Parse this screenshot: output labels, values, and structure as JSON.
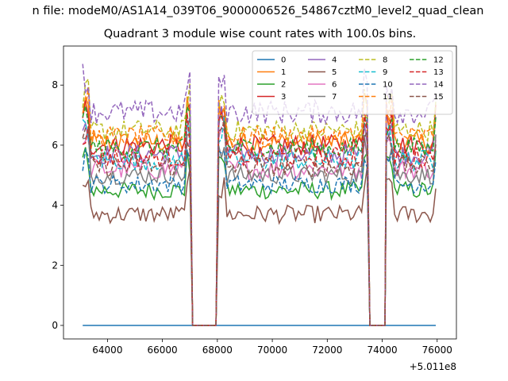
{
  "chart_data": {
    "type": "line",
    "suptitle": "n file: modeM0/AS1A14_039T06_9000006526_54867cztM0_level2_quad_clean",
    "title": "Quadrant 3 module wise count rates with 100.0s bins.",
    "x_offset_label": "+5.011e8",
    "xlim": [
      62400,
      76700
    ],
    "ylim": [
      -0.45,
      9.3
    ],
    "x_ticks": [
      64000,
      66000,
      68000,
      70000,
      72000,
      74000,
      76000
    ],
    "y_ticks": [
      0,
      2,
      4,
      6,
      8
    ],
    "legend": {
      "placement": "top-right",
      "columns": 4
    },
    "grid": false,
    "segments": [
      [
        63100,
        67000
      ],
      [
        68050,
        73450
      ],
      [
        74150,
        76000
      ]
    ],
    "gaps": [
      [
        67100,
        67950
      ],
      [
        73550,
        74100
      ]
    ],
    "series": [
      {
        "name": "0",
        "color": "#1f77b4",
        "dashed": false,
        "base": 0.0,
        "noise": 0.0
      },
      {
        "name": "1",
        "color": "#ff7f0e",
        "dashed": false,
        "base": 6.1,
        "noise": 0.35
      },
      {
        "name": "2",
        "color": "#2ca02c",
        "dashed": false,
        "base": 4.5,
        "noise": 0.3
      },
      {
        "name": "3",
        "color": "#d62728",
        "dashed": false,
        "base": 6.0,
        "noise": 0.35
      },
      {
        "name": "4",
        "color": "#9467bd",
        "dashed": false,
        "base": 5.7,
        "noise": 0.35
      },
      {
        "name": "5",
        "color": "#8c564b",
        "dashed": false,
        "base": 3.7,
        "noise": 0.3
      },
      {
        "name": "6",
        "color": "#e377c2",
        "dashed": false,
        "base": 5.2,
        "noise": 0.35
      },
      {
        "name": "7",
        "color": "#7f7f7f",
        "dashed": false,
        "base": 5.0,
        "noise": 0.3
      },
      {
        "name": "8",
        "color": "#bcbd22",
        "dashed": true,
        "base": 6.5,
        "noise": 0.35
      },
      {
        "name": "9",
        "color": "#17becf",
        "dashed": true,
        "base": 5.5,
        "noise": 0.35
      },
      {
        "name": "10",
        "color": "#1f77b4",
        "dashed": true,
        "base": 4.7,
        "noise": 0.3
      },
      {
        "name": "11",
        "color": "#ff7f0e",
        "dashed": true,
        "base": 6.3,
        "noise": 0.35
      },
      {
        "name": "12",
        "color": "#2ca02c",
        "dashed": true,
        "base": 5.9,
        "noise": 0.35
      },
      {
        "name": "13",
        "color": "#d62728",
        "dashed": true,
        "base": 5.6,
        "noise": 0.35
      },
      {
        "name": "14",
        "color": "#9467bd",
        "dashed": true,
        "base": 7.1,
        "noise": 0.4
      },
      {
        "name": "15",
        "color": "#8c564b",
        "dashed": true,
        "base": 5.3,
        "noise": 0.35
      }
    ]
  }
}
